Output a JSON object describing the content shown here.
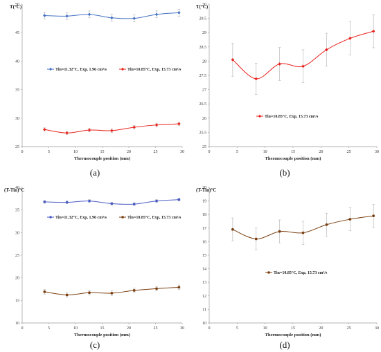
{
  "chart_data": [
    {
      "panel": "a",
      "caption": "(a)",
      "type": "line",
      "ylabel": "T(°C)",
      "xlabel": "Thermocouple position (mm)",
      "xlim": [
        0,
        30
      ],
      "xticks": [
        0,
        5,
        10,
        15,
        20,
        25,
        30
      ],
      "ylim": [
        25,
        50
      ],
      "yticks": [
        25,
        30,
        35,
        40,
        45,
        50
      ],
      "grid": false,
      "legend_position": "middle",
      "series": [
        {
          "name": "Tin=11.32°C, Exp, 1.96 cm³/s",
          "color": "#4472c4",
          "marker": "diamond",
          "x": [
            4.2,
            8.4,
            12.6,
            16.8,
            21.0,
            25.2,
            29.4
          ],
          "y": [
            48.0,
            47.9,
            48.2,
            47.6,
            47.5,
            48.2,
            48.5
          ],
          "err": [
            0.6,
            0.6,
            0.6,
            0.6,
            0.6,
            0.6,
            0.6
          ]
        },
        {
          "name": "Tin=10.85°C, Exp, 15.73 cm³/s",
          "color": "#e8211b",
          "marker": "diamond",
          "x": [
            4.2,
            8.4,
            12.6,
            16.8,
            21.0,
            25.2,
            29.4
          ],
          "y": [
            28.0,
            27.4,
            27.9,
            27.8,
            28.4,
            28.8,
            29.0
          ],
          "err": [
            0.3,
            0.3,
            0.3,
            0.3,
            0.3,
            0.3,
            0.3
          ]
        }
      ]
    },
    {
      "panel": "b",
      "caption": "(b)",
      "type": "line",
      "ylabel": "T(°C)",
      "xlabel": "Thermocouple position (mm)",
      "xlim": [
        0,
        30
      ],
      "xticks": [
        0,
        5,
        10,
        15,
        20,
        25,
        30
      ],
      "ylim": [
        25,
        30
      ],
      "yticks": [
        25,
        25.5,
        26,
        26.5,
        27,
        27.5,
        28,
        28.5,
        29,
        29.5,
        30
      ],
      "grid": false,
      "legend_position": "lower-middle",
      "series": [
        {
          "name": "Tin=10.85°C, Exp, 15.73 cm³/s",
          "color": "#e8211b",
          "marker": "diamond",
          "x": [
            4.2,
            8.4,
            12.6,
            16.8,
            21.0,
            25.2,
            29.4
          ],
          "y": [
            28.05,
            27.38,
            27.9,
            27.82,
            28.4,
            28.8,
            29.05
          ],
          "err": [
            0.58,
            0.55,
            0.58,
            0.58,
            0.58,
            0.58,
            0.58
          ]
        }
      ]
    },
    {
      "panel": "c",
      "caption": "(c)",
      "type": "line",
      "ylabel": "(T-Tin)°C",
      "xlabel": "Thermocouple position (mm)",
      "xlim": [
        0,
        30
      ],
      "xticks": [
        0,
        5,
        10,
        15,
        20,
        25,
        30
      ],
      "ylim": [
        10,
        40
      ],
      "yticks": [
        10,
        15,
        20,
        25,
        30,
        35,
        40
      ],
      "grid": false,
      "legend_position": "middle",
      "series": [
        {
          "name": "Tin=11.32°C, Exp, 1.96 cm³/s",
          "color": "#4a5bc4",
          "marker": "circle",
          "x": [
            4.2,
            8.4,
            12.6,
            16.8,
            21.0,
            25.2,
            29.4
          ],
          "y": [
            36.8,
            36.7,
            37.0,
            36.4,
            36.3,
            37.0,
            37.3
          ],
          "err": [
            0.3,
            0.3,
            0.3,
            0.3,
            0.3,
            0.3,
            0.3
          ]
        },
        {
          "name": "Tin=10.85°C, Exp, 15.73 cm³/s",
          "color": "#7b3f10",
          "marker": "circle",
          "x": [
            4.2,
            8.4,
            12.6,
            16.8,
            21.0,
            25.2,
            29.4
          ],
          "y": [
            16.9,
            16.2,
            16.7,
            16.6,
            17.2,
            17.6,
            17.9
          ],
          "err": [
            0.5,
            0.5,
            0.5,
            0.5,
            0.5,
            0.5,
            0.5
          ]
        }
      ]
    },
    {
      "panel": "d",
      "caption": "(d)",
      "type": "line",
      "ylabel": "(T-Tin)°C",
      "xlabel": "Thermocouple position (mm)",
      "xlim": [
        0,
        30
      ],
      "xticks": [
        0,
        5,
        10,
        15,
        20,
        25,
        30
      ],
      "ylim": [
        10,
        20
      ],
      "yticks": [
        10,
        11,
        12,
        13,
        14,
        15,
        16,
        17,
        18,
        19,
        20
      ],
      "grid": false,
      "legend_position": "lower-middle",
      "series": [
        {
          "name": "Tin=10.85°C, Exp, 15.73 cm³/s",
          "color": "#7b3f10",
          "marker": "circle",
          "x": [
            4.2,
            8.4,
            12.6,
            16.8,
            21.0,
            25.2,
            29.4
          ],
          "y": [
            16.9,
            16.2,
            16.75,
            16.65,
            17.25,
            17.65,
            17.9
          ],
          "err": [
            0.85,
            0.8,
            0.85,
            0.85,
            0.85,
            0.85,
            0.85
          ]
        }
      ]
    }
  ]
}
